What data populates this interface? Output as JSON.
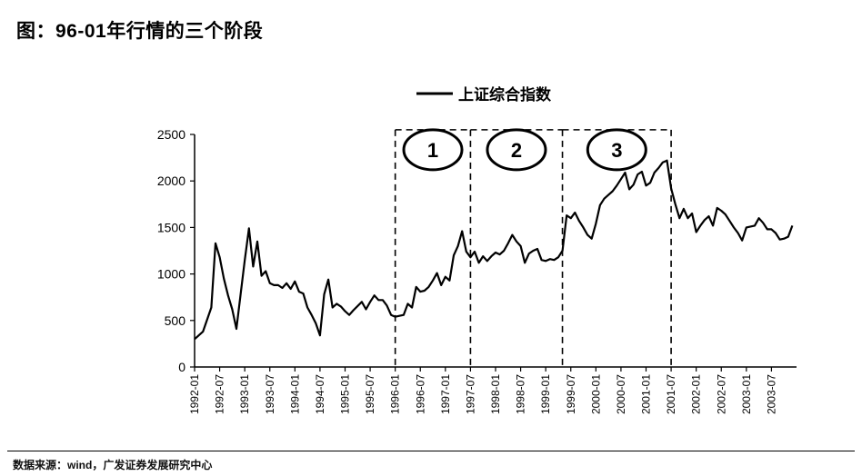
{
  "title": "图：96-01年行情的三个阶段",
  "source": "数据来源：wind，广发证券发展研究中心",
  "chart_data": {
    "type": "line",
    "legend": {
      "label": "上证综合指数",
      "position": "top-center"
    },
    "y_ticks": [
      "2500",
      "2000",
      "1500",
      "1000",
      "500",
      "0"
    ],
    "ylim": [
      0,
      2500
    ],
    "x_ticks": [
      "1992-01",
      "1992-07",
      "1993-01",
      "1993-07",
      "1994-01",
      "1994-07",
      "1995-01",
      "1995-07",
      "1996-01",
      "1996-07",
      "1997-01",
      "1997-07",
      "1998-01",
      "1998-07",
      "1999-01",
      "1999-07",
      "2000-01",
      "2000-07",
      "2001-01",
      "2001-07",
      "2002-01",
      "2002-07",
      "2003-01",
      "2003-07"
    ],
    "series": [
      {
        "name": "上证综合指数",
        "color": "#000000",
        "points": [
          [
            "1992-01",
            300
          ],
          [
            "1992-03",
            380
          ],
          [
            "1992-05",
            640
          ],
          [
            "1992-06",
            1330
          ],
          [
            "1992-07",
            1180
          ],
          [
            "1992-08",
            950
          ],
          [
            "1992-09",
            770
          ],
          [
            "1992-10",
            620
          ],
          [
            "1992-11",
            410
          ],
          [
            "1992-12",
            780
          ],
          [
            "1993-01",
            1150
          ],
          [
            "1993-02",
            1490
          ],
          [
            "1993-03",
            1080
          ],
          [
            "1993-04",
            1350
          ],
          [
            "1993-05",
            980
          ],
          [
            "1993-06",
            1030
          ],
          [
            "1993-07",
            900
          ],
          [
            "1993-08",
            880
          ],
          [
            "1993-09",
            880
          ],
          [
            "1993-10",
            850
          ],
          [
            "1993-11",
            900
          ],
          [
            "1993-12",
            840
          ],
          [
            "1994-01",
            920
          ],
          [
            "1994-02",
            810
          ],
          [
            "1994-03",
            790
          ],
          [
            "1994-04",
            640
          ],
          [
            "1994-05",
            560
          ],
          [
            "1994-06",
            470
          ],
          [
            "1994-07",
            340
          ],
          [
            "1994-08",
            780
          ],
          [
            "1994-09",
            940
          ],
          [
            "1994-10",
            640
          ],
          [
            "1994-11",
            680
          ],
          [
            "1994-12",
            650
          ],
          [
            "1995-01",
            600
          ],
          [
            "1995-02",
            560
          ],
          [
            "1995-03",
            610
          ],
          [
            "1995-05",
            700
          ],
          [
            "1995-06",
            620
          ],
          [
            "1995-07",
            700
          ],
          [
            "1995-08",
            770
          ],
          [
            "1995-09",
            720
          ],
          [
            "1995-10",
            720
          ],
          [
            "1995-11",
            660
          ],
          [
            "1995-12",
            560
          ],
          [
            "1996-01",
            540
          ],
          [
            "1996-03",
            560
          ],
          [
            "1996-04",
            680
          ],
          [
            "1996-05",
            640
          ],
          [
            "1996-06",
            860
          ],
          [
            "1996-07",
            810
          ],
          [
            "1996-08",
            820
          ],
          [
            "1996-09",
            860
          ],
          [
            "1996-10",
            930
          ],
          [
            "1996-11",
            1010
          ],
          [
            "1996-12",
            880
          ],
          [
            "1997-01",
            970
          ],
          [
            "1997-02",
            930
          ],
          [
            "1997-03",
            1200
          ],
          [
            "1997-04",
            1300
          ],
          [
            "1997-05",
            1460
          ],
          [
            "1997-06",
            1240
          ],
          [
            "1997-07",
            1180
          ],
          [
            "1997-08",
            1240
          ],
          [
            "1997-09",
            1120
          ],
          [
            "1997-10",
            1190
          ],
          [
            "1997-11",
            1140
          ],
          [
            "1997-12",
            1190
          ],
          [
            "1998-01",
            1230
          ],
          [
            "1998-02",
            1210
          ],
          [
            "1998-03",
            1250
          ],
          [
            "1998-04",
            1330
          ],
          [
            "1998-05",
            1420
          ],
          [
            "1998-06",
            1350
          ],
          [
            "1998-07",
            1300
          ],
          [
            "1998-08",
            1120
          ],
          [
            "1998-09",
            1220
          ],
          [
            "1998-10",
            1250
          ],
          [
            "1998-11",
            1270
          ],
          [
            "1998-12",
            1150
          ],
          [
            "1999-01",
            1140
          ],
          [
            "1999-02",
            1160
          ],
          [
            "1999-03",
            1150
          ],
          [
            "1999-04",
            1180
          ],
          [
            "1999-05",
            1250
          ],
          [
            "1999-06",
            1630
          ],
          [
            "1999-07",
            1600
          ],
          [
            "1999-08",
            1660
          ],
          [
            "1999-09",
            1570
          ],
          [
            "1999-10",
            1500
          ],
          [
            "1999-11",
            1420
          ],
          [
            "1999-12",
            1380
          ],
          [
            "2000-01",
            1540
          ],
          [
            "2000-02",
            1740
          ],
          [
            "2000-03",
            1810
          ],
          [
            "2000-04",
            1850
          ],
          [
            "2000-05",
            1890
          ],
          [
            "2000-06",
            1950
          ],
          [
            "2000-07",
            2020
          ],
          [
            "2000-08",
            2090
          ],
          [
            "2000-09",
            1910
          ],
          [
            "2000-10",
            1960
          ],
          [
            "2000-11",
            2070
          ],
          [
            "2000-12",
            2100
          ],
          [
            "2001-01",
            1950
          ],
          [
            "2001-02",
            1980
          ],
          [
            "2001-03",
            2090
          ],
          [
            "2001-04",
            2140
          ],
          [
            "2001-05",
            2200
          ],
          [
            "2001-06",
            2220
          ],
          [
            "2001-07",
            1920
          ],
          [
            "2001-08",
            1750
          ],
          [
            "2001-09",
            1600
          ],
          [
            "2001-10",
            1700
          ],
          [
            "2001-11",
            1600
          ],
          [
            "2001-12",
            1650
          ],
          [
            "2002-01",
            1450
          ],
          [
            "2002-02",
            1520
          ],
          [
            "2002-03",
            1580
          ],
          [
            "2002-04",
            1620
          ],
          [
            "2002-05",
            1520
          ],
          [
            "2002-06",
            1710
          ],
          [
            "2002-07",
            1680
          ],
          [
            "2002-08",
            1640
          ],
          [
            "2002-09",
            1570
          ],
          [
            "2002-10",
            1500
          ],
          [
            "2002-11",
            1440
          ],
          [
            "2002-12",
            1360
          ],
          [
            "2003-01",
            1500
          ],
          [
            "2003-02",
            1510
          ],
          [
            "2003-03",
            1520
          ],
          [
            "2003-04",
            1600
          ],
          [
            "2003-05",
            1550
          ],
          [
            "2003-06",
            1480
          ],
          [
            "2003-07",
            1480
          ],
          [
            "2003-08",
            1440
          ],
          [
            "2003-09",
            1370
          ],
          [
            "2003-10",
            1380
          ],
          [
            "2003-11",
            1400
          ],
          [
            "2003-12",
            1520
          ]
        ]
      }
    ],
    "phases": [
      {
        "label": "1",
        "start": "1996-01",
        "end": "1997-07",
        "top": 2550
      },
      {
        "label": "2",
        "start": "1997-07",
        "end": "1999-05",
        "top": 2550
      },
      {
        "label": "3",
        "start": "1999-05",
        "end": "2001-07",
        "top": 2550
      }
    ],
    "grid": false
  }
}
